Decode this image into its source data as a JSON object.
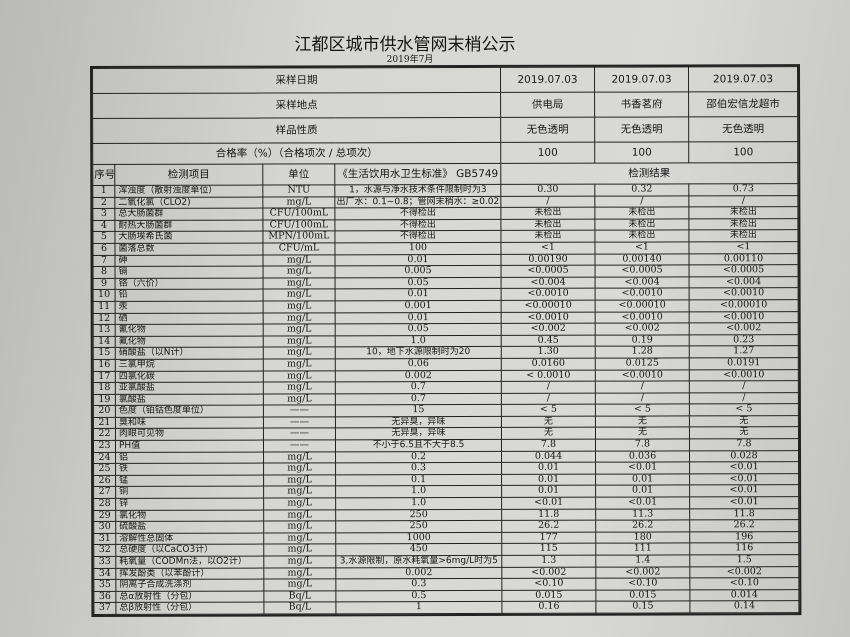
{
  "title": "江都区城市供水管网末梢公示",
  "subtitle": "2019年7月",
  "meta": [
    {
      "label": "采样日期",
      "values": [
        "2019.07.03",
        "2019.07.03",
        "2019.07.03"
      ]
    },
    {
      "label": "采样地点",
      "values": [
        "供电局",
        "书香茗府",
        "邵伯宏信龙超市"
      ]
    },
    {
      "label": "样品性质",
      "values": [
        "无色透明",
        "无色透明",
        "无色透明"
      ]
    },
    {
      "label": "合格率（%）（合格项次 / 总项次）",
      "values": [
        "100",
        "100",
        "100"
      ]
    }
  ],
  "headers": {
    "seq": "序号",
    "item": "检测项目",
    "unit": "单位",
    "standard": "《生活饮用水卫生标准》 GB5749",
    "results": "检测结果"
  },
  "rows": [
    [
      "1",
      "浑浊度（散射浊度单位）",
      "NTU",
      "1，水源与净水技术条件限制时为3",
      "0.30",
      "0.32",
      "0.73"
    ],
    [
      "2",
      "二氧化氯（CLO2)",
      "mg/L",
      "出厂水：0.1~0.8；管网末梢水：≥0.02",
      "/",
      "/",
      "/"
    ],
    [
      "3",
      "总大肠菌群",
      "CFU/100mL",
      "不得检出",
      "未检出",
      "未检出",
      "未检出"
    ],
    [
      "4",
      "耐热大肠菌群",
      "CFU/100mL",
      "不得检出",
      "未检出",
      "未检出",
      "未检出"
    ],
    [
      "5",
      "大肠埃希氏菌",
      "MPN/100mL",
      "不得检出",
      "未检出",
      "未检出",
      "未检出"
    ],
    [
      "6",
      "菌落总数",
      "CFU/mL",
      "100",
      "<1",
      "<1",
      "<1"
    ],
    [
      "7",
      "砷",
      "mg/L",
      "0.01",
      "0.00190",
      "0.00140",
      "0.00110"
    ],
    [
      "8",
      "镉",
      "mg/L",
      "0.005",
      "<0.0005",
      "<0.0005",
      "<0.0005"
    ],
    [
      "9",
      "铬（六价）",
      "mg/L",
      "0.05",
      "<0.004",
      "<0.004",
      "<0.004"
    ],
    [
      "10",
      "铅",
      "mg/L",
      "0.01",
      "<0.0010",
      "<0.0010",
      "<0.0010"
    ],
    [
      "11",
      "汞",
      "mg/L",
      "0.001",
      "<0.00010",
      "<0.00010",
      "<0.00010"
    ],
    [
      "12",
      "硒",
      "mg/L",
      "0.01",
      "<0.0010",
      "<0.0010",
      "<0.0010"
    ],
    [
      "13",
      "氰化物",
      "mg/L",
      "0.05",
      "<0.002",
      "<0.002",
      "<0.002"
    ],
    [
      "14",
      "氟化物",
      "mg/L",
      "1.0",
      "0.45",
      "0.19",
      "0.23"
    ],
    [
      "15",
      "硝酸盐（以N计）",
      "mg/L",
      "10，地下水源限制时为20",
      "1.30",
      "1.28",
      "1.27"
    ],
    [
      "16",
      "三氯甲烷",
      "mg/L",
      "0.06",
      "0.0160",
      "0.0125",
      "0.0191"
    ],
    [
      "17",
      "四氯化碳",
      "mg/L",
      "0.002",
      "< 0.0010",
      "<0.0010",
      "<0.0010"
    ],
    [
      "18",
      "亚氯酸盐",
      "mg/L",
      "0.7",
      "/",
      "/",
      "/"
    ],
    [
      "19",
      "氯酸盐",
      "mg/L",
      "0.7",
      "/",
      "/",
      "/"
    ],
    [
      "20",
      "色度（铂钴色度单位）",
      "——",
      "15",
      "< 5",
      "< 5",
      "< 5"
    ],
    [
      "21",
      "臭和味",
      "——",
      "无异臭，异味",
      "无",
      "无",
      "无"
    ],
    [
      "22",
      "肉眼可见物",
      "——",
      "无异臭，异味",
      "无",
      "无",
      "无"
    ],
    [
      "23",
      "PH值",
      "——",
      "不小于6.5且不大于8.5",
      "7.8",
      "7.8",
      "7.8"
    ],
    [
      "24",
      "铝",
      "mg/L",
      "0.2",
      "0.044",
      "0.036",
      "0.028"
    ],
    [
      "25",
      "铁",
      "mg/L",
      "0.3",
      "0.01",
      "<0.01",
      "<0.01"
    ],
    [
      "26",
      "锰",
      "mg/L",
      "0.1",
      "0.01",
      "0.01",
      "<0.01"
    ],
    [
      "27",
      "铜",
      "mg/L",
      "1.0",
      "0.01",
      "0.01",
      "<0.01"
    ],
    [
      "28",
      "锌",
      "mg/L",
      "1.0",
      "<0.01",
      "<0.01",
      "<0.01"
    ],
    [
      "29",
      "氯化物",
      "mg/L",
      "250",
      "11.8",
      "11.3",
      "11.8"
    ],
    [
      "30",
      "硫酸盐",
      "mg/L",
      "250",
      "26.2",
      "26.2",
      "26.2"
    ],
    [
      "31",
      "溶解性总固体",
      "mg/L",
      "1000",
      "177",
      "180",
      "196"
    ],
    [
      "32",
      "总硬度（以CaCO3计）",
      "mg/L",
      "450",
      "115",
      "111",
      "116"
    ],
    [
      "33",
      "耗氧量（CODMn法，以O2计）",
      "mg/L",
      "3,水源限制，原水耗氧量>6mg/L时为5",
      "1.3",
      "1.4",
      "1.5"
    ],
    [
      "34",
      "挥发酚类（以苯酚计）",
      "mg/L",
      "0.002",
      "<0.002",
      "<0.002",
      "<0.002"
    ],
    [
      "35",
      "阴离子合成洗涤剂",
      "mg/L",
      "0.3",
      "<0.10",
      "<0.10",
      "<0.10"
    ],
    [
      "36",
      "总α放射性（分包）",
      "Bq/L",
      "0.5",
      "0.015",
      "0.015",
      "0.014"
    ],
    [
      "37",
      "总β放射性（分包）",
      "Bq/L",
      "1",
      "0.16",
      "0.15",
      "0.14"
    ]
  ]
}
